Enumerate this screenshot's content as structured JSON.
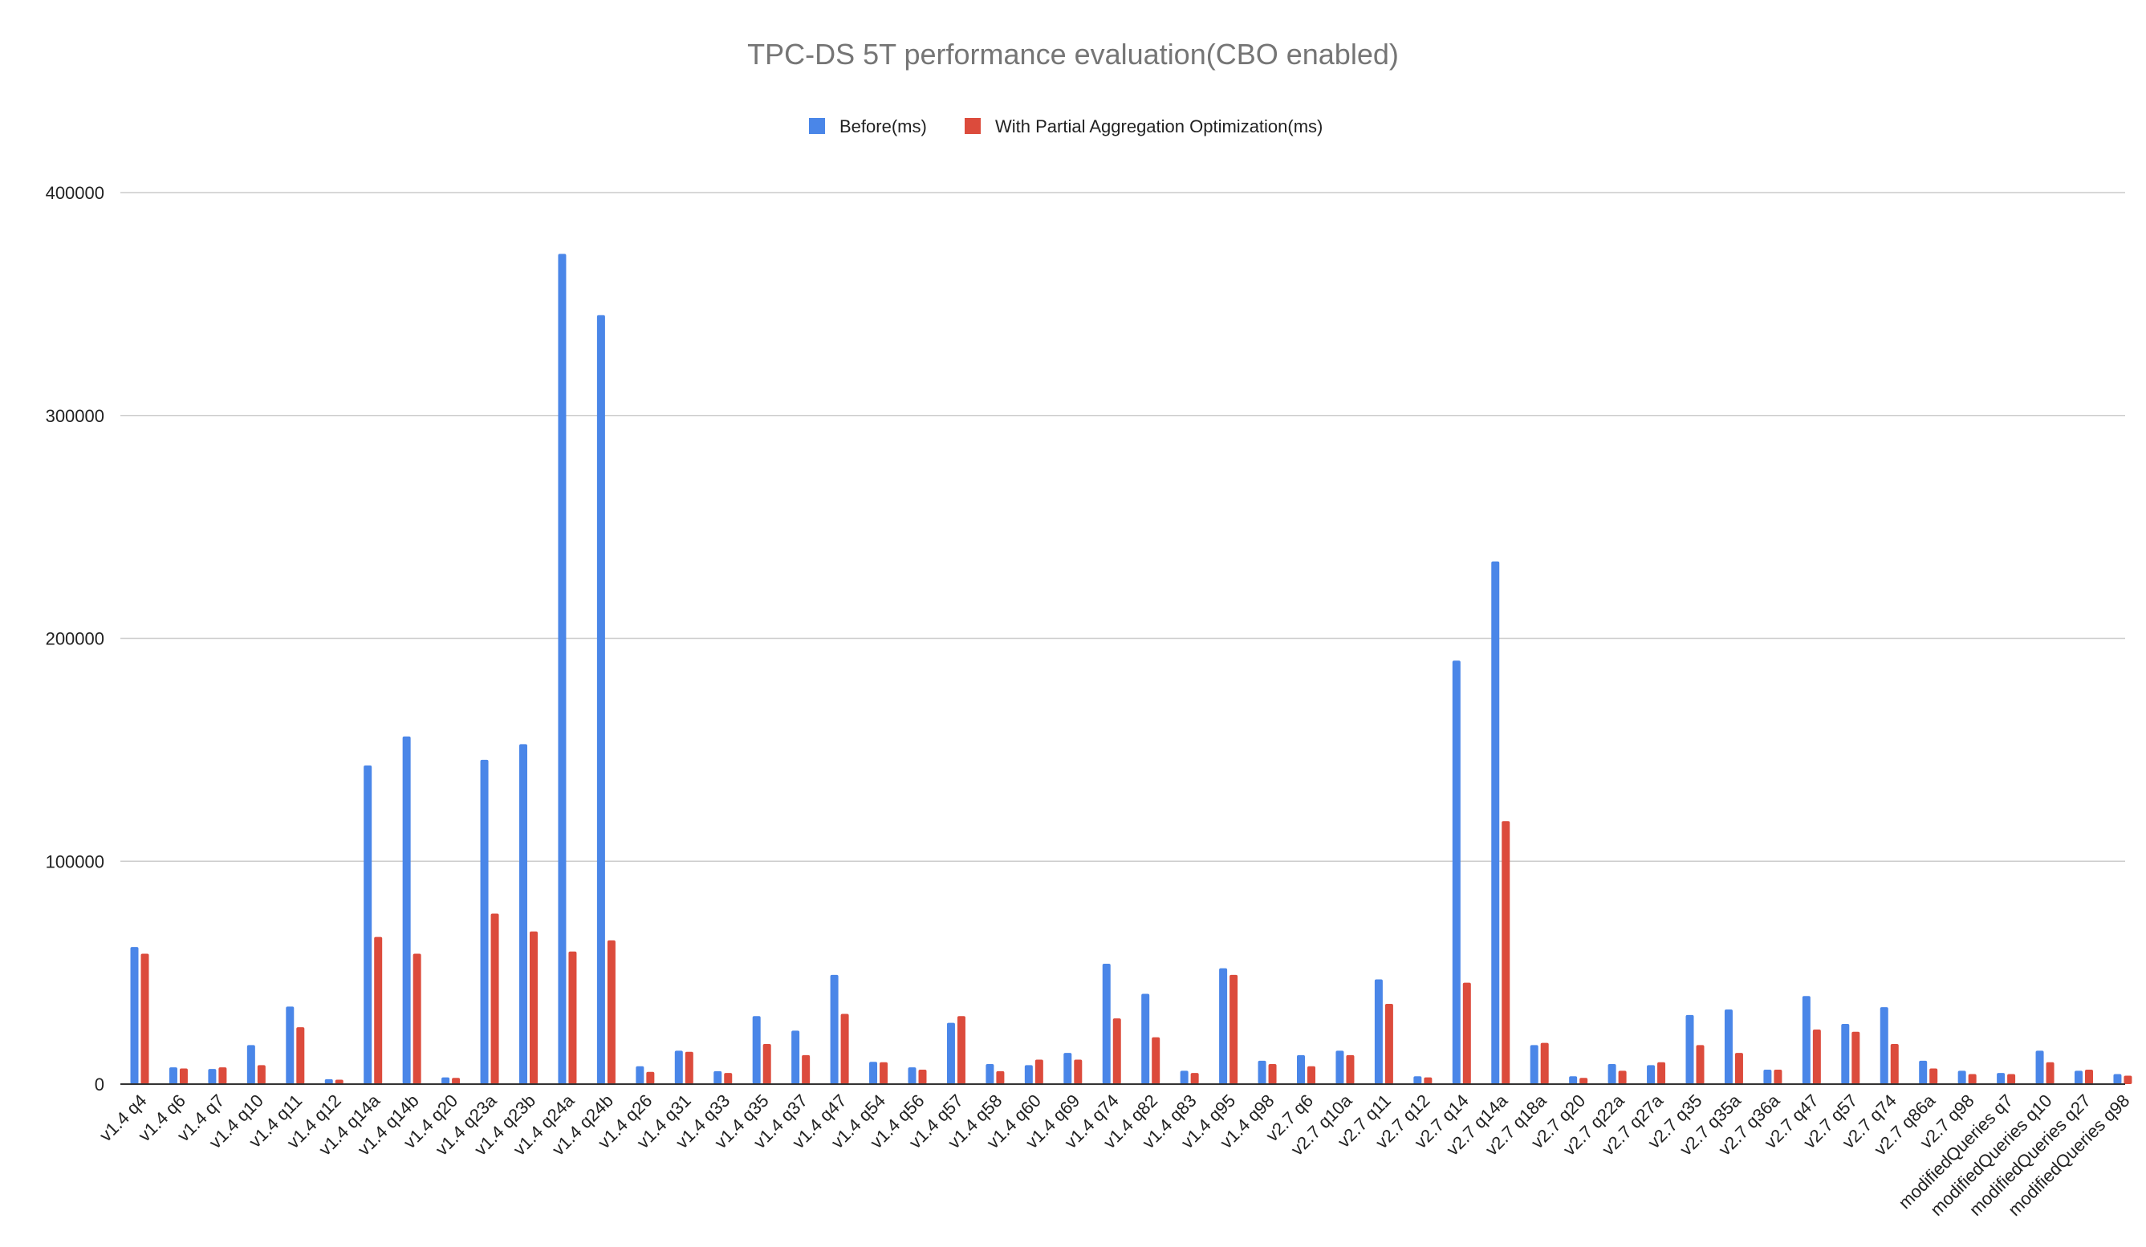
{
  "chart_data": {
    "type": "bar",
    "title": "TPC-DS 5T performance evaluation(CBO enabled)",
    "xlabel": "",
    "ylabel": "",
    "ylim": [
      0,
      400000
    ],
    "yticks": [
      0,
      100000,
      200000,
      300000,
      400000
    ],
    "ytick_labels": [
      "0",
      "100000",
      "200000",
      "300000",
      "400000"
    ],
    "grid": true,
    "legend_position": "top-center",
    "colors": {
      "before": "#4a86e8",
      "after": "#dc4b3c"
    },
    "categories": [
      "v1.4 q4",
      "v1.4 q6",
      "v1.4 q7",
      "v1.4 q10",
      "v1.4 q11",
      "v1.4 q12",
      "v1.4 q14a",
      "v1.4 q14b",
      "v1.4 q20",
      "v1.4 q23a",
      "v1.4 q23b",
      "v1.4 q24a",
      "v1.4 q24b",
      "v1.4 q26",
      "v1.4 q31",
      "v1.4 q33",
      "v1.4 q35",
      "v1.4 q37",
      "v1.4 q47",
      "v1.4 q54",
      "v1.4 q56",
      "v1.4 q57",
      "v1.4 q58",
      "v1.4 q60",
      "v1.4 q69",
      "v1.4 q74",
      "v1.4 q82",
      "v1.4 q83",
      "v1.4 q95",
      "v1.4 q98",
      "v2.7 q6",
      "v2.7 q10a",
      "v2.7 q11",
      "v2.7 q12",
      "v2.7 q14",
      "v2.7 q14a",
      "v2.7 q18a",
      "v2.7 q20",
      "v2.7 q22a",
      "v2.7 q27a",
      "v2.7 q35",
      "v2.7 q35a",
      "v2.7 q36a",
      "v2.7 q47",
      "v2.7 q57",
      "v2.7 q74",
      "v2.7 q86a",
      "v2.7 q98",
      "modifiedQueries q7",
      "modifiedQueries q10",
      "modifiedQueries q27",
      "modifiedQueries q98"
    ],
    "series": [
      {
        "name": "Before(ms)",
        "values": [
          61500,
          7500,
          6800,
          17500,
          34800,
          2200,
          143000,
          156000,
          3000,
          145500,
          152500,
          372500,
          345000,
          8000,
          15000,
          5800,
          30500,
          24000,
          49000,
          10000,
          7500,
          27500,
          9000,
          8500,
          14000,
          54000,
          40500,
          6000,
          52000,
          10500,
          13000,
          15000,
          47000,
          3500,
          190000,
          234500,
          17500,
          3500,
          9000,
          8500,
          31000,
          33500,
          6500,
          39500,
          27000,
          34500,
          10500,
          6000,
          5000,
          15000,
          6000,
          4500
        ]
      },
      {
        "name": "With Partial Aggregation Optimization(ms)",
        "values": [
          58500,
          7000,
          7500,
          8500,
          25500,
          2000,
          66000,
          58500,
          2800,
          76500,
          68500,
          59500,
          64500,
          5500,
          14500,
          5000,
          18000,
          13000,
          31500,
          9800,
          6500,
          30500,
          5800,
          11000,
          11000,
          29500,
          21000,
          5000,
          49000,
          9000,
          8000,
          13000,
          36000,
          3000,
          45500,
          118000,
          18500,
          2800,
          6000,
          9800,
          17500,
          14000,
          6500,
          24500,
          23500,
          18000,
          7000,
          4500,
          4500,
          9800,
          6500,
          3800
        ]
      }
    ]
  }
}
